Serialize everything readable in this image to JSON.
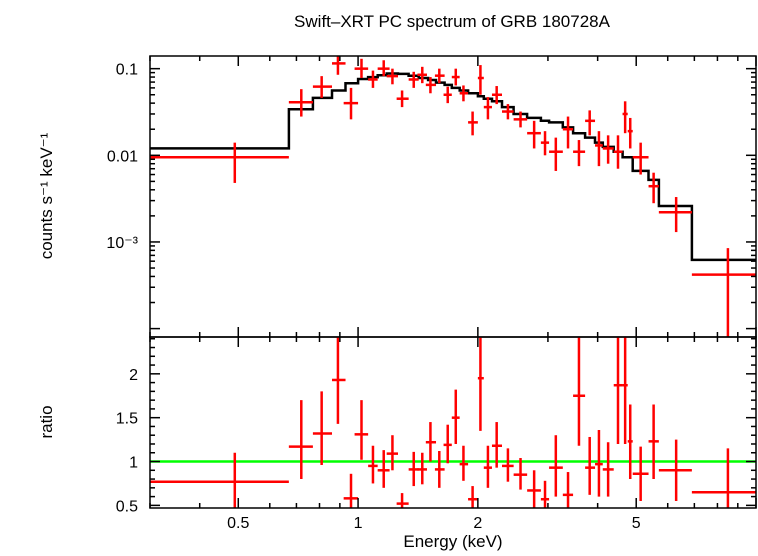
{
  "chart_data": [
    {
      "type": "line",
      "panel": "spectrum",
      "title": "Swift–XRT PC spectrum of GRB 180728A",
      "xlabel": "Energy (keV)",
      "ylabel": "counts s⁻¹ keV⁻¹",
      "xscale": "log",
      "yscale": "log",
      "xlim": [
        0.3,
        10
      ],
      "ylim": [
        8e-05,
        0.14
      ],
      "ytick_labels": [
        "0.1",
        "0.01",
        "10⁻³"
      ],
      "ytick_values": [
        0.1,
        0.01,
        0.001
      ],
      "colors": {
        "data": "#ff0000",
        "model": "#000000"
      },
      "data": [
        {
          "x": 0.49,
          "xlo": 0.3,
          "xhi": 0.67,
          "y": 0.0095,
          "ylo": 0.0048,
          "yhi": 0.014
        },
        {
          "x": 0.72,
          "xlo": 0.67,
          "xhi": 0.77,
          "y": 0.041,
          "ylo": 0.028,
          "yhi": 0.058
        },
        {
          "x": 0.81,
          "xlo": 0.77,
          "xhi": 0.86,
          "y": 0.062,
          "ylo": 0.046,
          "yhi": 0.082
        },
        {
          "x": 0.89,
          "xlo": 0.86,
          "xhi": 0.93,
          "y": 0.115,
          "ylo": 0.085,
          "yhi": 0.15
        },
        {
          "x": 0.96,
          "xlo": 0.92,
          "xhi": 1.0,
          "y": 0.04,
          "ylo": 0.026,
          "yhi": 0.06
        },
        {
          "x": 1.02,
          "xlo": 0.98,
          "xhi": 1.06,
          "y": 0.1,
          "ylo": 0.078,
          "yhi": 0.13
        },
        {
          "x": 1.09,
          "xlo": 1.06,
          "xhi": 1.12,
          "y": 0.075,
          "ylo": 0.06,
          "yhi": 0.095
        },
        {
          "x": 1.16,
          "xlo": 1.12,
          "xhi": 1.2,
          "y": 0.1,
          "ylo": 0.082,
          "yhi": 0.125
        },
        {
          "x": 1.22,
          "xlo": 1.18,
          "xhi": 1.26,
          "y": 0.082,
          "ylo": 0.066,
          "yhi": 0.1
        },
        {
          "x": 1.29,
          "xlo": 1.25,
          "xhi": 1.34,
          "y": 0.045,
          "ylo": 0.036,
          "yhi": 0.056
        },
        {
          "x": 1.38,
          "xlo": 1.34,
          "xhi": 1.42,
          "y": 0.075,
          "ylo": 0.06,
          "yhi": 0.092
        },
        {
          "x": 1.45,
          "xlo": 1.41,
          "xhi": 1.49,
          "y": 0.085,
          "ylo": 0.068,
          "yhi": 0.105
        },
        {
          "x": 1.52,
          "xlo": 1.48,
          "xhi": 1.57,
          "y": 0.065,
          "ylo": 0.052,
          "yhi": 0.08
        },
        {
          "x": 1.6,
          "xlo": 1.56,
          "xhi": 1.65,
          "y": 0.083,
          "ylo": 0.068,
          "yhi": 0.1
        },
        {
          "x": 1.68,
          "xlo": 1.64,
          "xhi": 1.72,
          "y": 0.05,
          "ylo": 0.04,
          "yhi": 0.062
        },
        {
          "x": 1.76,
          "xlo": 1.72,
          "xhi": 1.8,
          "y": 0.08,
          "ylo": 0.064,
          "yhi": 0.1
        },
        {
          "x": 1.84,
          "xlo": 1.8,
          "xhi": 1.89,
          "y": 0.052,
          "ylo": 0.042,
          "yhi": 0.064
        },
        {
          "x": 1.94,
          "xlo": 1.89,
          "xhi": 2.0,
          "y": 0.024,
          "ylo": 0.017,
          "yhi": 0.032
        },
        {
          "x": 2.03,
          "xlo": 2.0,
          "xhi": 2.07,
          "y": 0.078,
          "ylo": 0.05,
          "yhi": 0.11
        },
        {
          "x": 2.12,
          "xlo": 2.07,
          "xhi": 2.17,
          "y": 0.036,
          "ylo": 0.026,
          "yhi": 0.047
        },
        {
          "x": 2.23,
          "xlo": 2.17,
          "xhi": 2.3,
          "y": 0.05,
          "ylo": 0.039,
          "yhi": 0.063
        },
        {
          "x": 2.38,
          "xlo": 2.3,
          "xhi": 2.46,
          "y": 0.032,
          "ylo": 0.026,
          "yhi": 0.039
        },
        {
          "x": 2.56,
          "xlo": 2.46,
          "xhi": 2.66,
          "y": 0.026,
          "ylo": 0.021,
          "yhi": 0.032
        },
        {
          "x": 2.77,
          "xlo": 2.66,
          "xhi": 2.88,
          "y": 0.018,
          "ylo": 0.012,
          "yhi": 0.025
        },
        {
          "x": 2.95,
          "xlo": 2.88,
          "xhi": 3.02,
          "y": 0.014,
          "ylo": 0.01,
          "yhi": 0.019
        },
        {
          "x": 3.14,
          "xlo": 3.02,
          "xhi": 3.27,
          "y": 0.011,
          "ylo": 0.0066,
          "yhi": 0.016
        },
        {
          "x": 3.37,
          "xlo": 3.27,
          "xhi": 3.47,
          "y": 0.02,
          "ylo": 0.012,
          "yhi": 0.028
        },
        {
          "x": 3.59,
          "xlo": 3.47,
          "xhi": 3.72,
          "y": 0.011,
          "ylo": 0.0075,
          "yhi": 0.015
        },
        {
          "x": 3.82,
          "xlo": 3.72,
          "xhi": 3.94,
          "y": 0.025,
          "ylo": 0.017,
          "yhi": 0.033
        },
        {
          "x": 4.03,
          "xlo": 3.94,
          "xhi": 4.12,
          "y": 0.013,
          "ylo": 0.0075,
          "yhi": 0.019
        },
        {
          "x": 4.25,
          "xlo": 4.12,
          "xhi": 4.39,
          "y": 0.012,
          "ylo": 0.008,
          "yhi": 0.017
        },
        {
          "x": 4.5,
          "xlo": 4.39,
          "xhi": 4.62,
          "y": 0.011,
          "ylo": 0.007,
          "yhi": 0.017
        },
        {
          "x": 4.69,
          "xlo": 4.62,
          "xhi": 4.76,
          "y": 0.03,
          "ylo": 0.018,
          "yhi": 0.042
        },
        {
          "x": 4.83,
          "xlo": 4.76,
          "xhi": 4.9,
          "y": 0.019,
          "ylo": 0.012,
          "yhi": 0.027
        },
        {
          "x": 5.13,
          "xlo": 4.9,
          "xhi": 5.37,
          "y": 0.0095,
          "ylo": 0.006,
          "yhi": 0.014
        },
        {
          "x": 5.53,
          "xlo": 5.37,
          "xhi": 5.7,
          "y": 0.0044,
          "ylo": 0.0028,
          "yhi": 0.0063
        },
        {
          "x": 6.3,
          "xlo": 5.7,
          "xhi": 6.9,
          "y": 0.0022,
          "ylo": 0.0013,
          "yhi": 0.0033
        },
        {
          "x": 8.5,
          "xlo": 6.9,
          "xhi": 10.0,
          "y": 0.00042,
          "ylo": 8e-05,
          "yhi": 0.00085
        }
      ],
      "model": [
        {
          "e": 0.3,
          "y": 0.012
        },
        {
          "e": 0.67,
          "y": 0.012
        },
        {
          "e": 0.67,
          "y": 0.034
        },
        {
          "e": 0.77,
          "y": 0.034
        },
        {
          "e": 0.77,
          "y": 0.046
        },
        {
          "e": 0.86,
          "y": 0.046
        },
        {
          "e": 0.86,
          "y": 0.056
        },
        {
          "e": 0.93,
          "y": 0.056
        },
        {
          "e": 0.93,
          "y": 0.068
        },
        {
          "e": 1.0,
          "y": 0.068
        },
        {
          "e": 1.0,
          "y": 0.076
        },
        {
          "e": 1.06,
          "y": 0.076
        },
        {
          "e": 1.06,
          "y": 0.08
        },
        {
          "e": 1.12,
          "y": 0.08
        },
        {
          "e": 1.12,
          "y": 0.084
        },
        {
          "e": 1.18,
          "y": 0.084
        },
        {
          "e": 1.18,
          "y": 0.088
        },
        {
          "e": 1.26,
          "y": 0.088
        },
        {
          "e": 1.26,
          "y": 0.087
        },
        {
          "e": 1.34,
          "y": 0.087
        },
        {
          "e": 1.34,
          "y": 0.083
        },
        {
          "e": 1.42,
          "y": 0.083
        },
        {
          "e": 1.42,
          "y": 0.078
        },
        {
          "e": 1.5,
          "y": 0.078
        },
        {
          "e": 1.5,
          "y": 0.074
        },
        {
          "e": 1.57,
          "y": 0.074
        },
        {
          "e": 1.57,
          "y": 0.069
        },
        {
          "e": 1.65,
          "y": 0.069
        },
        {
          "e": 1.65,
          "y": 0.065
        },
        {
          "e": 1.72,
          "y": 0.065
        },
        {
          "e": 1.72,
          "y": 0.06
        },
        {
          "e": 1.8,
          "y": 0.06
        },
        {
          "e": 1.8,
          "y": 0.056
        },
        {
          "e": 1.89,
          "y": 0.056
        },
        {
          "e": 1.89,
          "y": 0.052
        },
        {
          "e": 2.0,
          "y": 0.052
        },
        {
          "e": 2.0,
          "y": 0.048
        },
        {
          "e": 2.07,
          "y": 0.048
        },
        {
          "e": 2.07,
          "y": 0.045
        },
        {
          "e": 2.17,
          "y": 0.045
        },
        {
          "e": 2.17,
          "y": 0.042
        },
        {
          "e": 2.3,
          "y": 0.042
        },
        {
          "e": 2.3,
          "y": 0.036
        },
        {
          "e": 2.46,
          "y": 0.036
        },
        {
          "e": 2.46,
          "y": 0.03
        },
        {
          "e": 2.66,
          "y": 0.03
        },
        {
          "e": 2.66,
          "y": 0.027
        },
        {
          "e": 2.88,
          "y": 0.027
        },
        {
          "e": 2.88,
          "y": 0.025
        },
        {
          "e": 3.02,
          "y": 0.025
        },
        {
          "e": 3.02,
          "y": 0.024
        },
        {
          "e": 3.27,
          "y": 0.024
        },
        {
          "e": 3.27,
          "y": 0.021
        },
        {
          "e": 3.47,
          "y": 0.021
        },
        {
          "e": 3.47,
          "y": 0.018
        },
        {
          "e": 3.72,
          "y": 0.018
        },
        {
          "e": 3.72,
          "y": 0.016
        },
        {
          "e": 3.94,
          "y": 0.016
        },
        {
          "e": 3.94,
          "y": 0.014
        },
        {
          "e": 4.12,
          "y": 0.014
        },
        {
          "e": 4.12,
          "y": 0.0125
        },
        {
          "e": 4.39,
          "y": 0.0125
        },
        {
          "e": 4.39,
          "y": 0.011
        },
        {
          "e": 4.62,
          "y": 0.011
        },
        {
          "e": 4.62,
          "y": 0.0095
        },
        {
          "e": 4.9,
          "y": 0.0095
        },
        {
          "e": 4.9,
          "y": 0.0066
        },
        {
          "e": 5.37,
          "y": 0.0066
        },
        {
          "e": 5.37,
          "y": 0.0052
        },
        {
          "e": 5.7,
          "y": 0.0052
        },
        {
          "e": 5.7,
          "y": 0.0026
        },
        {
          "e": 6.9,
          "y": 0.0026
        },
        {
          "e": 6.9,
          "y": 0.00062
        },
        {
          "e": 10.0,
          "y": 0.00062
        }
      ]
    },
    {
      "type": "scatter",
      "panel": "ratio",
      "title": "",
      "xlabel": "Energy (keV)",
      "ylabel": "ratio",
      "xscale": "log",
      "xlim": [
        0.3,
        10
      ],
      "ylim": [
        0.47,
        2.42
      ],
      "ytick_labels": [
        "0.5",
        "1",
        "1.5",
        "2"
      ],
      "ytick_values": [
        0.5,
        1,
        1.5,
        2
      ],
      "xtick_labels": [
        "0.5",
        "1",
        "2",
        "5"
      ],
      "xtick_values": [
        0.5,
        1,
        2,
        5
      ],
      "reference_line": 1,
      "colors": {
        "data": "#ff0000",
        "reference": "#00ff00"
      },
      "data": [
        {
          "x": 0.49,
          "xlo": 0.3,
          "xhi": 0.67,
          "y": 0.77,
          "ylo": 0.4,
          "yhi": 1.1
        },
        {
          "x": 0.72,
          "xlo": 0.67,
          "xhi": 0.77,
          "y": 1.17,
          "ylo": 0.8,
          "yhi": 1.7
        },
        {
          "x": 0.81,
          "xlo": 0.77,
          "xhi": 0.86,
          "y": 1.32,
          "ylo": 0.96,
          "yhi": 1.8
        },
        {
          "x": 0.89,
          "xlo": 0.86,
          "xhi": 0.93,
          "y": 1.93,
          "ylo": 1.43,
          "yhi": 2.5
        },
        {
          "x": 0.96,
          "xlo": 0.92,
          "xhi": 1.0,
          "y": 0.58,
          "ylo": 0.4,
          "yhi": 0.86
        },
        {
          "x": 1.02,
          "xlo": 0.98,
          "xhi": 1.06,
          "y": 1.31,
          "ylo": 1.02,
          "yhi": 1.7
        },
        {
          "x": 1.09,
          "xlo": 1.06,
          "xhi": 1.12,
          "y": 0.95,
          "ylo": 0.75,
          "yhi": 1.18
        },
        {
          "x": 1.16,
          "xlo": 1.12,
          "xhi": 1.2,
          "y": 0.9,
          "ylo": 0.7,
          "yhi": 1.13
        },
        {
          "x": 1.22,
          "xlo": 1.18,
          "xhi": 1.26,
          "y": 1.09,
          "ylo": 0.9,
          "yhi": 1.3
        },
        {
          "x": 1.29,
          "xlo": 1.25,
          "xhi": 1.34,
          "y": 0.52,
          "ylo": 0.4,
          "yhi": 0.64
        },
        {
          "x": 1.38,
          "xlo": 1.34,
          "xhi": 1.42,
          "y": 0.91,
          "ylo": 0.72,
          "yhi": 1.11
        },
        {
          "x": 1.45,
          "xlo": 1.41,
          "xhi": 1.49,
          "y": 0.91,
          "ylo": 0.74,
          "yhi": 1.1
        },
        {
          "x": 1.52,
          "xlo": 1.48,
          "xhi": 1.57,
          "y": 1.22,
          "ylo": 1.0,
          "yhi": 1.45
        },
        {
          "x": 1.6,
          "xlo": 1.56,
          "xhi": 1.65,
          "y": 0.91,
          "ylo": 0.7,
          "yhi": 1.12
        },
        {
          "x": 1.68,
          "xlo": 1.64,
          "xhi": 1.72,
          "y": 1.19,
          "ylo": 0.98,
          "yhi": 1.42
        },
        {
          "x": 1.76,
          "xlo": 1.72,
          "xhi": 1.8,
          "y": 1.5,
          "ylo": 1.2,
          "yhi": 1.82
        },
        {
          "x": 1.84,
          "xlo": 1.8,
          "xhi": 1.89,
          "y": 0.97,
          "ylo": 0.78,
          "yhi": 1.18
        },
        {
          "x": 1.94,
          "xlo": 1.89,
          "xhi": 2.0,
          "y": 0.57,
          "ylo": 0.42,
          "yhi": 0.72
        },
        {
          "x": 2.03,
          "xlo": 2.0,
          "xhi": 2.07,
          "y": 1.95,
          "ylo": 1.35,
          "yhi": 2.6
        },
        {
          "x": 2.12,
          "xlo": 2.07,
          "xhi": 2.17,
          "y": 0.93,
          "ylo": 0.7,
          "yhi": 1.18
        },
        {
          "x": 2.23,
          "xlo": 2.17,
          "xhi": 2.3,
          "y": 1.18,
          "ylo": 0.93,
          "yhi": 1.45
        },
        {
          "x": 2.38,
          "xlo": 2.3,
          "xhi": 2.46,
          "y": 0.95,
          "ylo": 0.77,
          "yhi": 1.15
        },
        {
          "x": 2.56,
          "xlo": 2.46,
          "xhi": 2.66,
          "y": 0.85,
          "ylo": 0.68,
          "yhi": 1.04
        },
        {
          "x": 2.77,
          "xlo": 2.66,
          "xhi": 2.88,
          "y": 0.67,
          "ylo": 0.47,
          "yhi": 0.9
        },
        {
          "x": 2.95,
          "xlo": 2.88,
          "xhi": 3.02,
          "y": 0.57,
          "ylo": 0.4,
          "yhi": 0.78
        },
        {
          "x": 3.14,
          "xlo": 3.02,
          "xhi": 3.27,
          "y": 0.93,
          "ylo": 0.6,
          "yhi": 1.3
        },
        {
          "x": 3.37,
          "xlo": 3.27,
          "xhi": 3.47,
          "y": 0.62,
          "ylo": 0.38,
          "yhi": 0.88
        },
        {
          "x": 3.59,
          "xlo": 3.47,
          "xhi": 3.72,
          "y": 1.75,
          "ylo": 1.18,
          "yhi": 2.5
        },
        {
          "x": 3.82,
          "xlo": 3.72,
          "xhi": 3.94,
          "y": 0.93,
          "ylo": 0.62,
          "yhi": 1.28
        },
        {
          "x": 4.03,
          "xlo": 3.94,
          "xhi": 4.12,
          "y": 0.97,
          "ylo": 0.6,
          "yhi": 1.36
        },
        {
          "x": 4.25,
          "xlo": 4.12,
          "xhi": 4.39,
          "y": 0.91,
          "ylo": 0.6,
          "yhi": 1.22
        },
        {
          "x": 4.5,
          "xlo": 4.39,
          "xhi": 4.62,
          "y": 1.87,
          "ylo": 1.2,
          "yhi": 2.55
        },
        {
          "x": 4.69,
          "xlo": 4.62,
          "xhi": 4.76,
          "y": 1.87,
          "ylo": 1.2,
          "yhi": 2.5
        },
        {
          "x": 4.83,
          "xlo": 4.76,
          "xhi": 4.9,
          "y": 1.23,
          "ylo": 0.8,
          "yhi": 1.65
        },
        {
          "x": 5.13,
          "xlo": 4.9,
          "xhi": 5.37,
          "y": 0.86,
          "ylo": 0.55,
          "yhi": 1.17
        },
        {
          "x": 5.53,
          "xlo": 5.37,
          "xhi": 5.7,
          "y": 1.23,
          "ylo": 0.8,
          "yhi": 1.65
        },
        {
          "x": 6.3,
          "xlo": 5.7,
          "xhi": 6.9,
          "y": 0.9,
          "ylo": 0.55,
          "yhi": 1.25
        },
        {
          "x": 8.5,
          "xlo": 6.9,
          "xhi": 10.0,
          "y": 0.65,
          "ylo": 0.3,
          "yhi": 1.15
        }
      ]
    }
  ]
}
